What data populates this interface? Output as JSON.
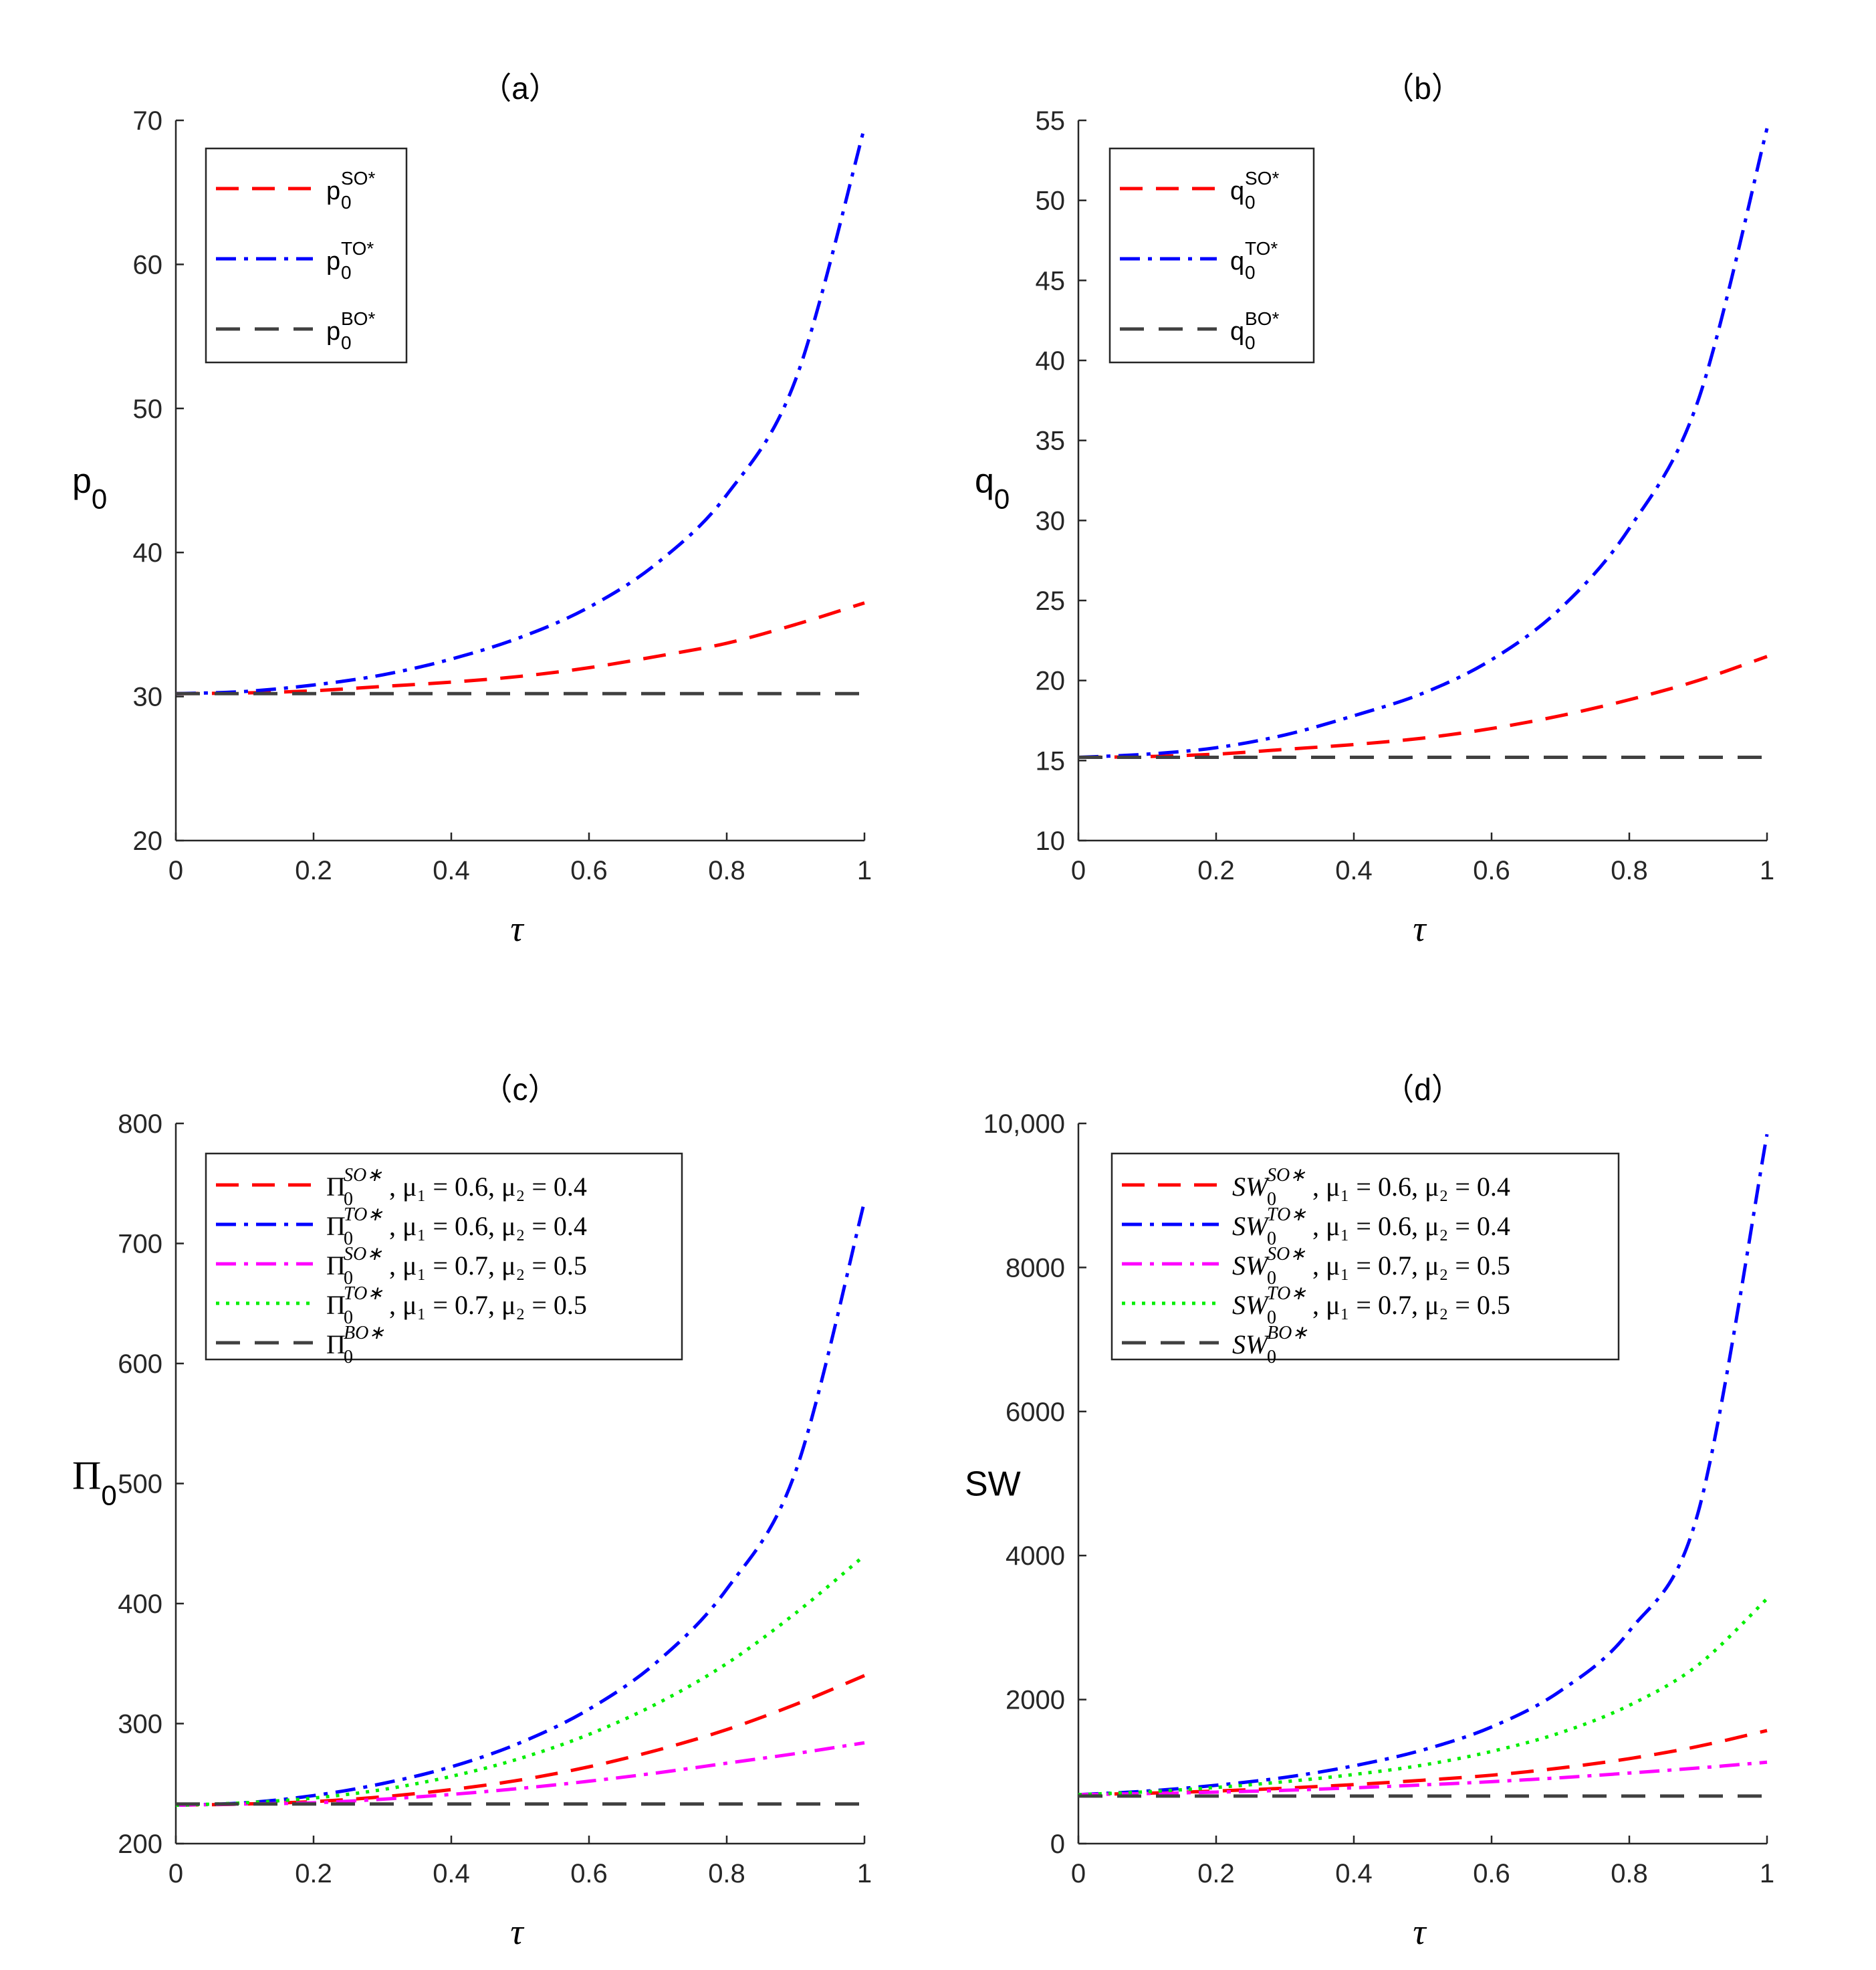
{
  "chart_data": [
    {
      "panel": "a",
      "type": "line",
      "title": "（a）",
      "xlabel": "τ",
      "ylabel_main": "p",
      "ylabel_sub": "0",
      "xlim": [
        0,
        1
      ],
      "ylim": [
        20,
        70
      ],
      "xticks": [
        "0",
        "0.2",
        "0.4",
        "0.6",
        "0.8",
        "1"
      ],
      "yticks": [
        "20",
        "30",
        "40",
        "50",
        "60",
        "70"
      ],
      "series": [
        {
          "name": "p0SO*",
          "label_main": "p",
          "label_sub": "0",
          "label_sup": "SO*",
          "color": "#ff0000",
          "dash": "dashed",
          "x": [
            0,
            0.1,
            0.2,
            0.3,
            0.4,
            0.5,
            0.6,
            0.7,
            0.8,
            0.9,
            1.0
          ],
          "y": [
            30.2,
            30.25,
            30.4,
            30.7,
            31.0,
            31.4,
            32.0,
            32.8,
            33.7,
            35.0,
            36.5
          ]
        },
        {
          "name": "p0TO*",
          "label_main": "p",
          "label_sub": "0",
          "label_sup": "TO*",
          "color": "#0000ff",
          "dash": "dashdot",
          "x": [
            0,
            0.1,
            0.2,
            0.3,
            0.4,
            0.5,
            0.6,
            0.7,
            0.8,
            0.9,
            1.0
          ],
          "y": [
            30.2,
            30.35,
            30.8,
            31.5,
            32.6,
            34.1,
            36.2,
            39.3,
            44.0,
            52.0,
            69.5
          ]
        },
        {
          "name": "p0BO*",
          "label_main": "p",
          "label_sub": "0",
          "label_sup": "BO*",
          "color": "#404040",
          "dash": "longdash",
          "x": [
            0,
            1.0
          ],
          "y": [
            30.2,
            30.2
          ]
        }
      ]
    },
    {
      "panel": "b",
      "type": "line",
      "title": "（b）",
      "xlabel": "τ",
      "ylabel_main": "q",
      "ylabel_sub": "0",
      "xlim": [
        0,
        1
      ],
      "ylim": [
        10,
        55
      ],
      "xticks": [
        "0",
        "0.2",
        "0.4",
        "0.6",
        "0.8",
        "1"
      ],
      "yticks": [
        "10",
        "15",
        "20",
        "25",
        "30",
        "35",
        "40",
        "45",
        "50",
        "55"
      ],
      "series": [
        {
          "name": "q0SO*",
          "label_main": "q",
          "label_sub": "0",
          "label_sup": "SO*",
          "color": "#ff0000",
          "dash": "dashed",
          "x": [
            0,
            0.1,
            0.2,
            0.3,
            0.4,
            0.5,
            0.6,
            0.7,
            0.8,
            0.9,
            1.0
          ],
          "y": [
            15.2,
            15.25,
            15.4,
            15.7,
            16.0,
            16.4,
            17.0,
            17.8,
            18.8,
            20.0,
            21.5
          ]
        },
        {
          "name": "q0TO*",
          "label_main": "q",
          "label_sub": "0",
          "label_sup": "TO*",
          "color": "#0000ff",
          "dash": "dashdot",
          "x": [
            0,
            0.1,
            0.2,
            0.3,
            0.4,
            0.5,
            0.6,
            0.7,
            0.8,
            0.9,
            1.0
          ],
          "y": [
            15.2,
            15.4,
            15.8,
            16.6,
            17.8,
            19.2,
            21.3,
            24.5,
            29.5,
            37.5,
            54.5
          ]
        },
        {
          "name": "q0BO*",
          "label_main": "q",
          "label_sub": "0",
          "label_sup": "BO*",
          "color": "#404040",
          "dash": "longdash",
          "x": [
            0,
            1.0
          ],
          "y": [
            15.2,
            15.2
          ]
        }
      ]
    },
    {
      "panel": "c",
      "type": "line",
      "title": "（c）",
      "xlabel": "τ",
      "ylabel_main": "Π",
      "ylabel_sub": "0",
      "xlim": [
        0,
        1
      ],
      "ylim": [
        200,
        800
      ],
      "xticks": [
        "0",
        "0.2",
        "0.4",
        "0.6",
        "0.8",
        "1"
      ],
      "yticks": [
        "200",
        "300",
        "400",
        "500",
        "600",
        "700",
        "800"
      ],
      "series": [
        {
          "name": "Pi0SO* mu1=0.6 mu2=0.4",
          "label_main": "Π",
          "label_sub": "0",
          "label_sup": "SO∗",
          "label_params": ", μ₁ = 0.6, μ₂ = 0.4",
          "color": "#ff0000",
          "dash": "dashed",
          "x": [
            0,
            0.1,
            0.2,
            0.3,
            0.4,
            0.5,
            0.6,
            0.7,
            0.8,
            0.9,
            1.0
          ],
          "y": [
            232,
            233,
            235,
            239,
            245,
            253,
            264,
            278,
            295,
            316,
            340
          ]
        },
        {
          "name": "Pi0TO* mu1=0.6 mu2=0.4",
          "label_main": "Π",
          "label_sub": "0",
          "label_sup": "TO∗",
          "label_params": ", μ₁ = 0.6, μ₂ = 0.4",
          "color": "#0000ff",
          "dash": "dashdot",
          "x": [
            0,
            0.1,
            0.2,
            0.3,
            0.4,
            0.5,
            0.6,
            0.7,
            0.8,
            0.9,
            1.0
          ],
          "y": [
            232,
            234,
            240,
            250,
            264,
            284,
            312,
            352,
            412,
            510,
            735
          ]
        },
        {
          "name": "Pi0SO* mu1=0.7 mu2=0.5",
          "label_main": "Π",
          "label_sub": "0",
          "label_sup": "SO∗",
          "label_params": ", μ₁ = 0.7, μ₂ = 0.5",
          "color": "#ff00ff",
          "dash": "dashdot",
          "x": [
            0,
            0.1,
            0.2,
            0.3,
            0.4,
            0.5,
            0.6,
            0.7,
            0.8,
            0.9,
            1.0
          ],
          "y": [
            232,
            233,
            234,
            237,
            241,
            246,
            252,
            259,
            267,
            275,
            284
          ]
        },
        {
          "name": "Pi0TO* mu1=0.7 mu2=0.5",
          "label_main": "Π",
          "label_sub": "0",
          "label_sup": "TO∗",
          "label_params": ", μ₁ = 0.7, μ₂ = 0.5",
          "color": "#00ee00",
          "dash": "dotted",
          "x": [
            0,
            0.1,
            0.2,
            0.3,
            0.4,
            0.5,
            0.6,
            0.7,
            0.8,
            0.9,
            1.0
          ],
          "y": [
            232,
            234,
            238,
            245,
            256,
            271,
            291,
            317,
            350,
            392,
            440
          ]
        },
        {
          "name": "Pi0BO*",
          "label_main": "Π",
          "label_sub": "0",
          "label_sup": "BO∗",
          "label_params": "",
          "color": "#404040",
          "dash": "longdash",
          "x": [
            0,
            1.0
          ],
          "y": [
            233,
            233
          ]
        }
      ]
    },
    {
      "panel": "d",
      "type": "line",
      "title": "（d）",
      "xlabel": "τ",
      "ylabel_main": "SW",
      "ylabel_sub": "",
      "xlim": [
        0,
        1
      ],
      "ylim": [
        0,
        10000
      ],
      "xticks": [
        "0",
        "0.2",
        "0.4",
        "0.6",
        "0.8",
        "1"
      ],
      "yticks": [
        "0",
        "2000",
        "4000",
        "6000",
        "8000",
        "10,000"
      ],
      "series": [
        {
          "name": "SW0SO* mu1=0.6 mu2=0.4",
          "label_main": "SW",
          "label_sub": "0",
          "label_sup": "SO∗",
          "label_params": ", μ₁ = 0.6, μ₂ = 0.4",
          "color": "#ff0000",
          "dash": "dashed",
          "x": [
            0,
            0.1,
            0.2,
            0.3,
            0.4,
            0.5,
            0.6,
            0.7,
            0.8,
            0.9,
            1.0
          ],
          "y": [
            680,
            700,
            730,
            770,
            820,
            880,
            950,
            1050,
            1180,
            1350,
            1570
          ]
        },
        {
          "name": "SW0TO* mu1=0.6 mu2=0.4",
          "label_main": "SW",
          "label_sub": "0",
          "label_sup": "TO∗",
          "label_params": ", μ₁ = 0.6, μ₂ = 0.4",
          "color": "#0000ff",
          "dash": "dashdot",
          "x": [
            0,
            0.1,
            0.2,
            0.3,
            0.4,
            0.5,
            0.6,
            0.7,
            0.8,
            0.9,
            1.0
          ],
          "y": [
            680,
            730,
            810,
            920,
            1080,
            1300,
            1620,
            2120,
            2950,
            4600,
            9850
          ]
        },
        {
          "name": "SW0SO* mu1=0.7 mu2=0.5",
          "label_main": "SW",
          "label_sub": "0",
          "label_sup": "SO∗",
          "label_params": ", μ₁ = 0.7, μ₂ = 0.5",
          "color": "#ff00ff",
          "dash": "dashdot",
          "x": [
            0,
            0.1,
            0.2,
            0.3,
            0.4,
            0.5,
            0.6,
            0.7,
            0.8,
            0.9,
            1.0
          ],
          "y": [
            680,
            695,
            715,
            740,
            775,
            815,
            860,
            915,
            980,
            1050,
            1130
          ]
        },
        {
          "name": "SW0TO* mu1=0.7 mu2=0.5",
          "label_main": "SW",
          "label_sub": "0",
          "label_sup": "TO∗",
          "label_params": ", μ₁ = 0.7, μ₂ = 0.5",
          "color": "#00ee00",
          "dash": "dotted",
          "x": [
            0,
            0.1,
            0.2,
            0.3,
            0.4,
            0.5,
            0.6,
            0.7,
            0.8,
            0.9,
            1.0
          ],
          "y": [
            680,
            720,
            780,
            860,
            960,
            1090,
            1280,
            1540,
            1920,
            2480,
            3400
          ]
        },
        {
          "name": "SW0BO*",
          "label_main": "SW",
          "label_sub": "0",
          "label_sup": "BO∗",
          "label_params": "",
          "color": "#404040",
          "dash": "longdash",
          "x": [
            0,
            1.0
          ],
          "y": [
            660,
            660
          ]
        }
      ]
    }
  ]
}
